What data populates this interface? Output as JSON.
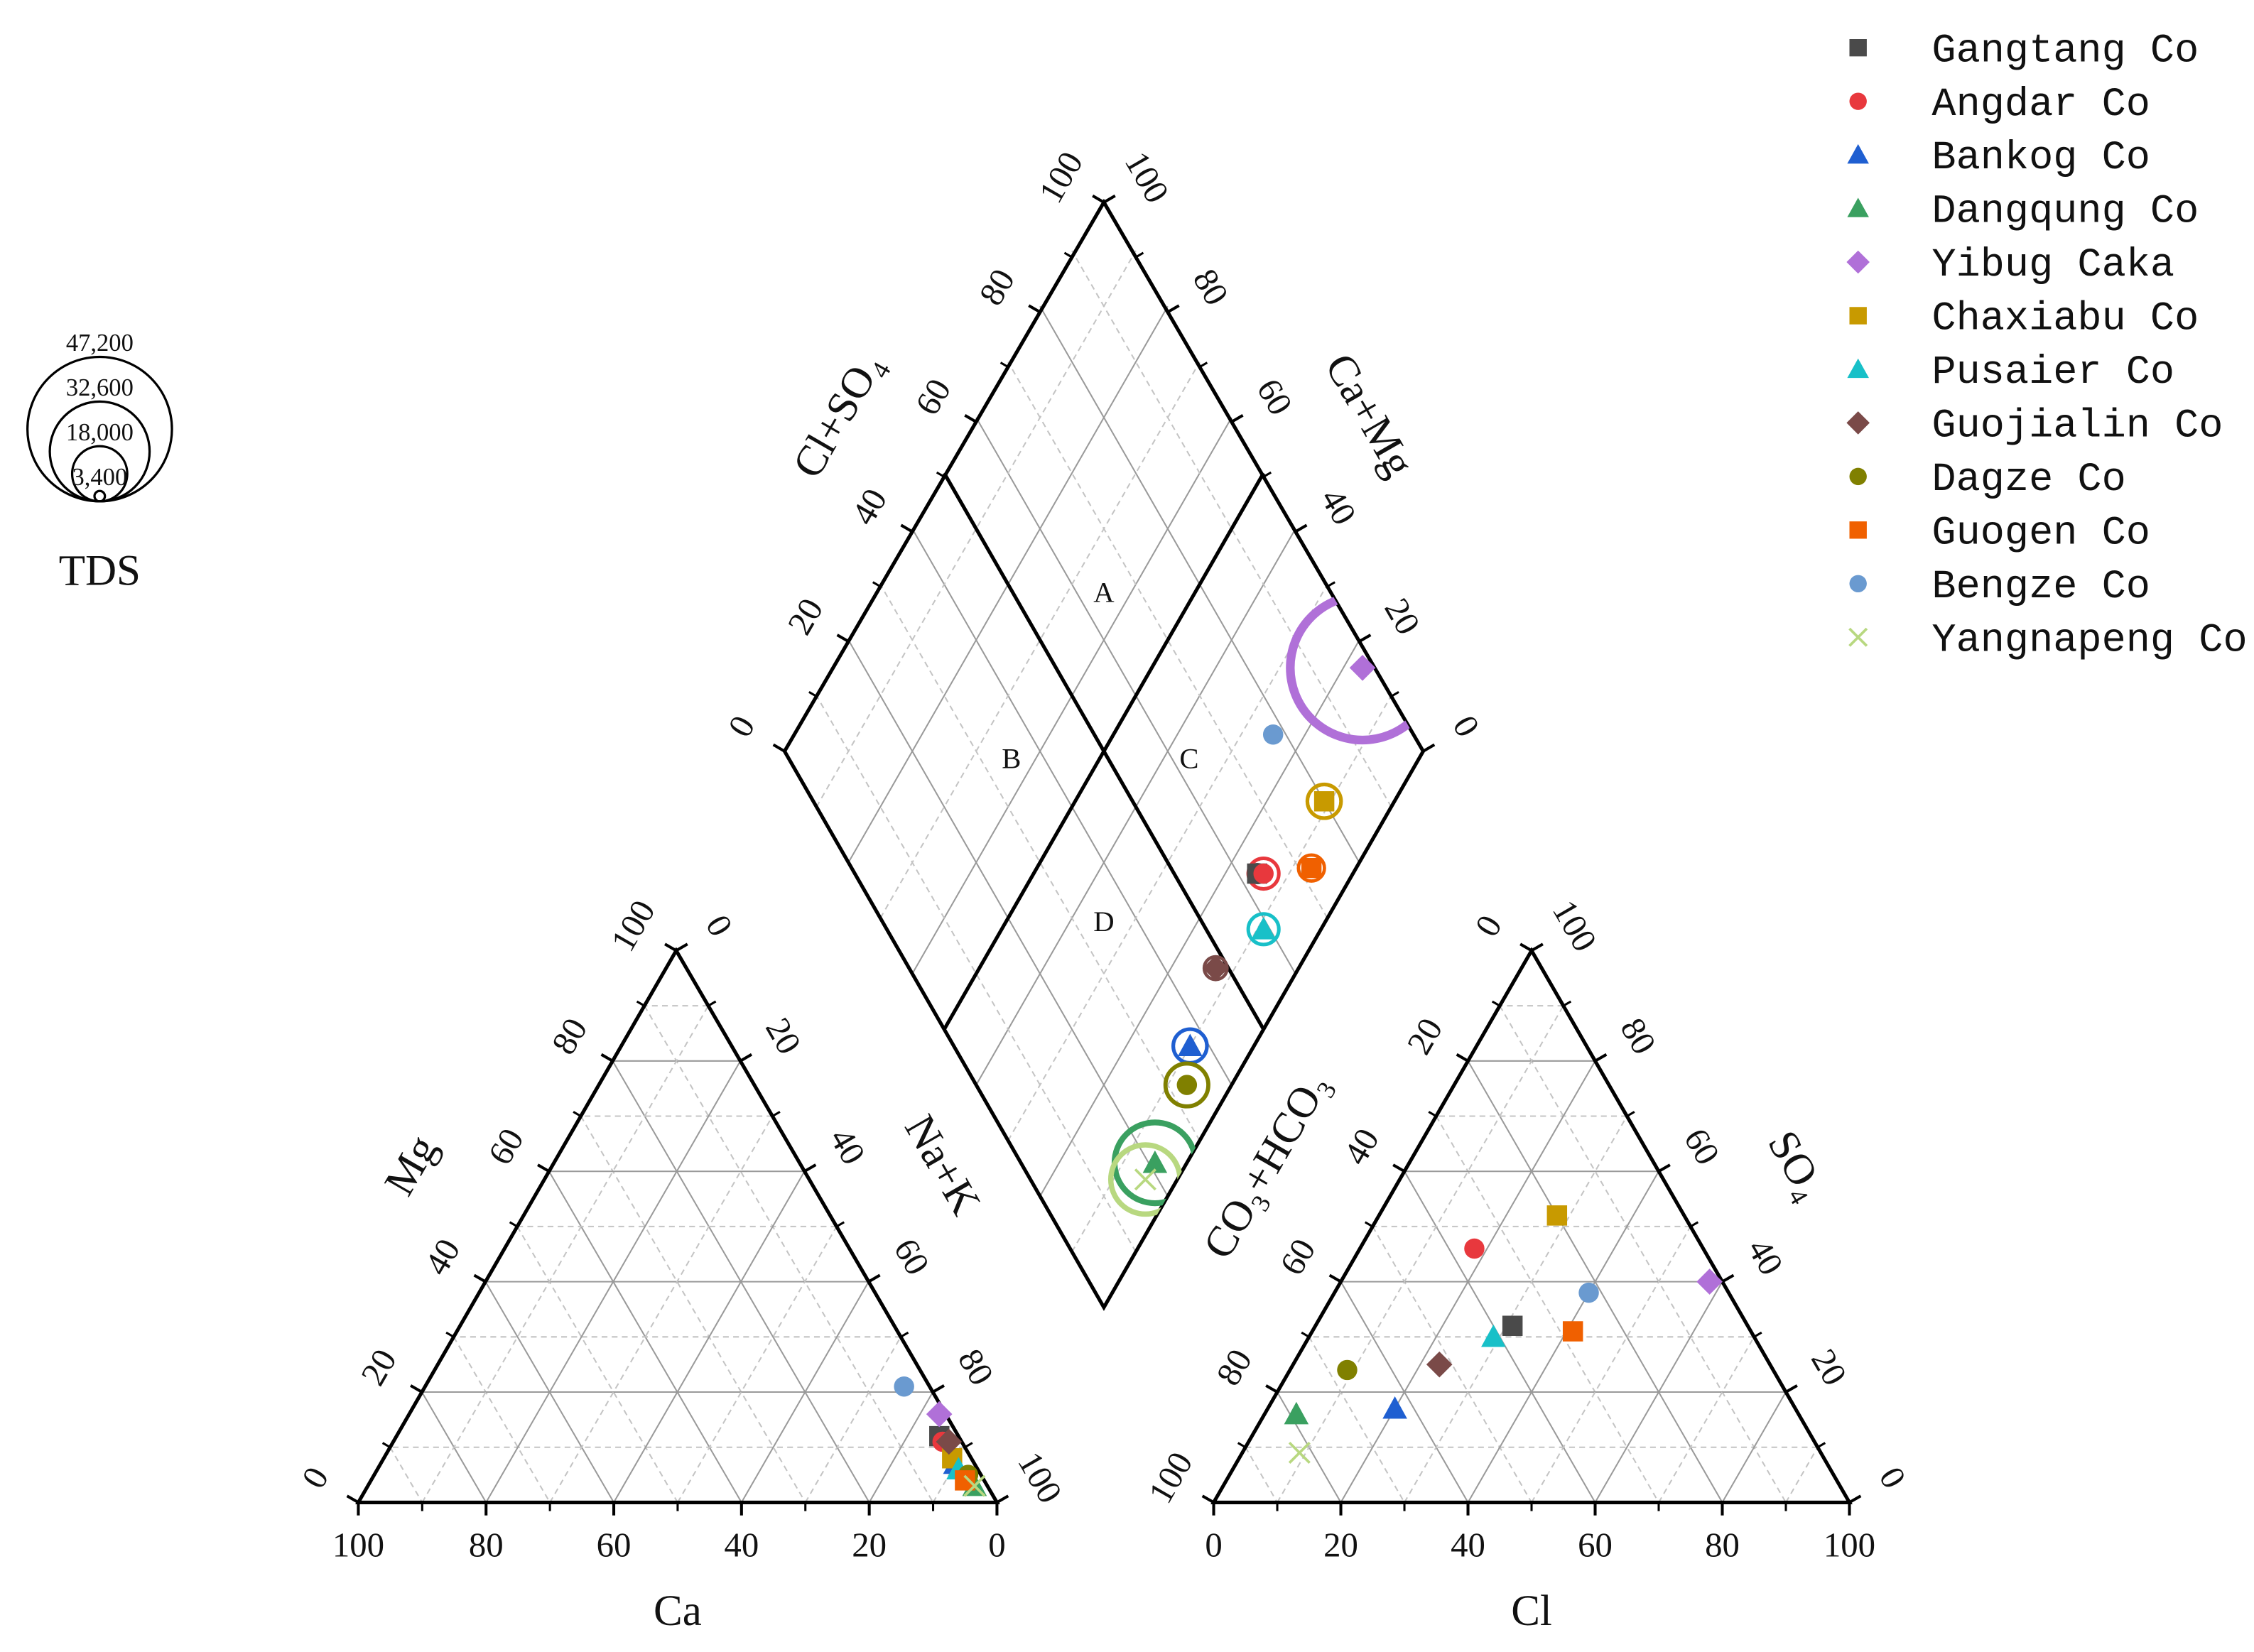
{
  "chart_data": {
    "type": "piper",
    "ticks": [
      0,
      20,
      40,
      60,
      80,
      100
    ],
    "cation_triangle": {
      "bottom_label": "Ca",
      "left_label": "Mg",
      "right_label": "Na+K"
    },
    "anion_triangle": {
      "bottom_label": "Cl",
      "left_label": "CO₃+HCO₃",
      "right_label": "SO₄"
    },
    "diamond": {
      "left_label": "Cl+SO₄",
      "right_label": "Ca+Mg",
      "regions": [
        "A",
        "B",
        "C",
        "D"
      ]
    },
    "tds_legend": {
      "title": "TDS",
      "sizes": [
        {
          "value": 47200,
          "label": "47,200"
        },
        {
          "value": 32600,
          "label": "32,600"
        },
        {
          "value": 18000,
          "label": "18,000"
        },
        {
          "value": 3400,
          "label": "3,400"
        }
      ]
    },
    "series": [
      {
        "name": "Gangtang Co",
        "color": "#4a4a4a",
        "marker": "square",
        "ca": 3,
        "mg": 12,
        "nak": 85,
        "cl": 31,
        "so4": 32,
        "hco3": 37,
        "tds": 6000
      },
      {
        "name": "Angdar Co",
        "color": "#e8383d",
        "marker": "circle",
        "ca": 3,
        "mg": 11,
        "nak": 86,
        "cl": 18,
        "so4": 46,
        "hco3": 36,
        "tds": 10000
      },
      {
        "name": "Bankog Co",
        "color": "#1f5fd1",
        "marker": "triangle",
        "ca": 3,
        "mg": 7,
        "nak": 90,
        "cl": 20,
        "so4": 17,
        "hco3": 63,
        "tds": 11000
      },
      {
        "name": "Dangqung Co",
        "color": "#3aa060",
        "marker": "triangle",
        "ca": 2,
        "mg": 3,
        "nak": 95,
        "cl": 5,
        "so4": 16,
        "hco3": 79,
        "tds": 26400
      },
      {
        "name": "Yibug Caka",
        "color": "#b070d8",
        "marker": "diamond",
        "ca": 1,
        "mg": 16,
        "nak": 83,
        "cl": 58,
        "so4": 40,
        "hco3": 2,
        "tds": 47200
      },
      {
        "name": "Chaxiabu Co",
        "color": "#c89a00",
        "marker": "square",
        "ca": 3,
        "mg": 8,
        "nak": 89,
        "cl": 28,
        "so4": 52,
        "hco3": 20,
        "tds": 11000
      },
      {
        "name": "Pusaier Co",
        "color": "#18c0c8",
        "marker": "triangle",
        "ca": 3,
        "mg": 6,
        "nak": 91,
        "cl": 29,
        "so4": 30,
        "hco3": 41,
        "tds": 10000
      },
      {
        "name": "Guojialin Co",
        "color": "#7a4a48",
        "marker": "diamond",
        "ca": 2,
        "mg": 11,
        "nak": 87,
        "cl": 23,
        "so4": 25,
        "hco3": 52,
        "tds": 7500
      },
      {
        "name": "Dagze Co",
        "color": "#808000",
        "marker": "circle",
        "ca": 2,
        "mg": 5,
        "nak": 93,
        "cl": 9,
        "so4": 24,
        "hco3": 67,
        "tds": 14000
      },
      {
        "name": "Guogen Co",
        "color": "#f06000",
        "marker": "square",
        "ca": 3,
        "mg": 4,
        "nak": 93,
        "cl": 41,
        "so4": 31,
        "hco3": 28,
        "tds": 8500
      },
      {
        "name": "Bengze Co",
        "color": "#6a9ad0",
        "marker": "circle",
        "ca": 4,
        "mg": 21,
        "nak": 75,
        "cl": 40,
        "so4": 38,
        "hco3": 22,
        "tds": 3400
      },
      {
        "name": "Yangnapeng Co",
        "color": "#b8d880",
        "marker": "x",
        "ca": 2,
        "mg": 3,
        "nak": 95,
        "cl": 9,
        "so4": 9,
        "hco3": 82,
        "tds": 22600
      }
    ]
  }
}
